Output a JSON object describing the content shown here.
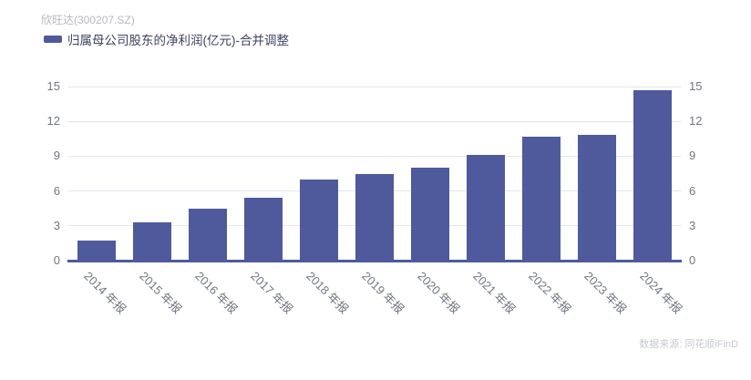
{
  "header": {
    "title": "欣旺达(300207.SZ)"
  },
  "legend": {
    "label": "归属母公司股东的净利润(亿元)-合并调整"
  },
  "footer": {
    "source": "数据来源: 同花顺iFinD"
  },
  "colors": {
    "bar": "#4e5a9b",
    "axis_line": "#4e5a9b",
    "grid_line": "#e2e6f1",
    "tick_label": "#71767f",
    "title_text": "#b5b8c1",
    "legend_text": "#3d4360",
    "source_text": "#c6c9d2"
  },
  "chart_data": {
    "type": "bar",
    "title": "欣旺达(300207.SZ)",
    "categories": [
      "2014 年报",
      "2015 年报",
      "2016 年报",
      "2017 年报",
      "2018 年报",
      "2019 年报",
      "2020 年报",
      "2021 年报",
      "2022 年报",
      "2023 年报",
      "2024 年报"
    ],
    "series": [
      {
        "name": "归属母公司股东的净利润(亿元)-合并调整",
        "values": [
          1.7,
          3.3,
          4.5,
          5.4,
          7.0,
          7.5,
          8.0,
          9.1,
          10.7,
          10.8,
          14.7
        ]
      }
    ],
    "xlabel": "",
    "ylabel": "",
    "ylim": [
      0,
      15
    ],
    "yticks": [
      0,
      3,
      6,
      9,
      12,
      15
    ],
    "grid": true,
    "legend_position": "top-left",
    "y_axis_sides": [
      "left",
      "right"
    ],
    "x_label_rotation_deg": 45
  }
}
